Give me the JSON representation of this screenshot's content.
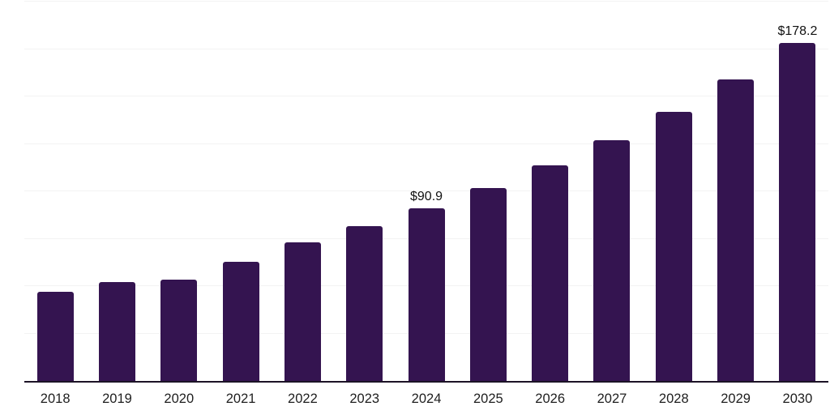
{
  "colors": {
    "background": "#ffffff",
    "bar": "#341450",
    "gridline": "#f3f3f3",
    "axis_line": "#1c1326",
    "tick_text": "#1e1e1e",
    "data_label_text": "#111111"
  },
  "chart_data": {
    "type": "bar",
    "title": "",
    "xlabel": "",
    "ylabel": "",
    "categories": [
      "2018",
      "2019",
      "2020",
      "2021",
      "2022",
      "2023",
      "2024",
      "2025",
      "2026",
      "2027",
      "2028",
      "2029",
      "2030"
    ],
    "values": [
      47.1,
      52.3,
      53.5,
      63.0,
      73.0,
      81.6,
      90.9,
      101.6,
      113.5,
      126.8,
      141.9,
      158.9,
      178.2
    ],
    "data_labels": [
      {
        "category": "2024",
        "text": "$90.9"
      },
      {
        "category": "2030",
        "text": "$178.2"
      }
    ],
    "ylim": [
      0,
      200
    ],
    "gridline_step": 25,
    "grid": "horizontal",
    "y_axis_ticks_visible": false,
    "legend_position": "none",
    "bar_color": "#341450"
  }
}
